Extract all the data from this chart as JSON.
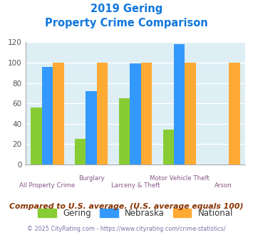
{
  "title_line1": "2019 Gering",
  "title_line2": "Property Crime Comparison",
  "categories": [
    "All Property Crime",
    "Burglary",
    "Larceny & Theft",
    "Motor Vehicle Theft",
    "Arson"
  ],
  "gering": [
    56,
    25,
    65,
    34,
    0
  ],
  "nebraska": [
    96,
    72,
    99,
    118,
    0
  ],
  "national": [
    100,
    100,
    100,
    100,
    100
  ],
  "color_gering": "#88cc33",
  "color_nebraska": "#3399ff",
  "color_national": "#ffaa33",
  "ylim": [
    0,
    120
  ],
  "yticks": [
    0,
    20,
    40,
    60,
    80,
    100,
    120
  ],
  "bg_color": "#ddeef5",
  "footnote": "Compared to U.S. average. (U.S. average equals 100)",
  "copyright": "© 2025 CityRating.com - https://www.cityrating.com/crime-statistics/",
  "title_color": "#1177dd",
  "footnote_color": "#883300",
  "copyright_color": "#7777aa"
}
